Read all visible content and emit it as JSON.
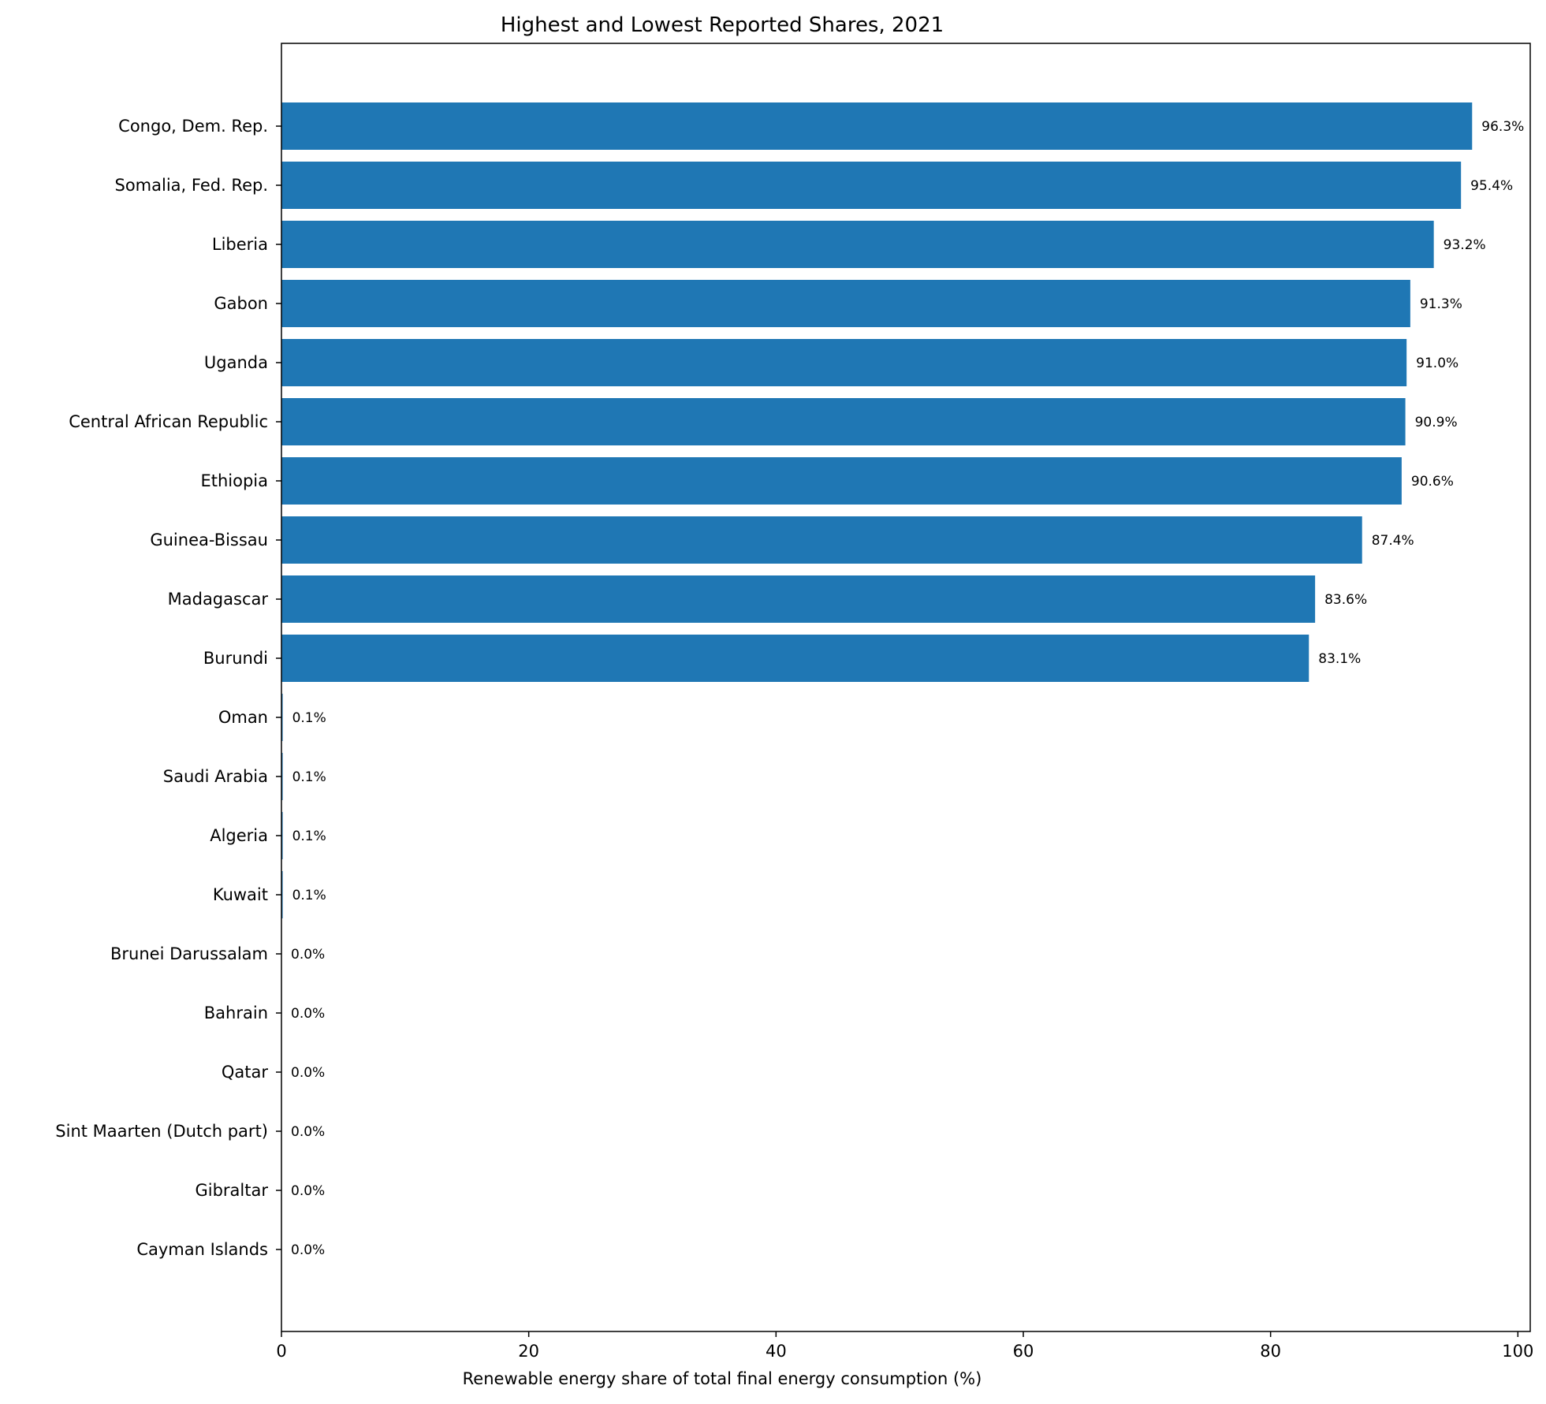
{
  "chart_data": {
    "type": "bar",
    "orientation": "horizontal",
    "title": "Highest and Lowest Reported Shares, 2021",
    "xlabel": "Renewable energy share of total final energy consumption (%)",
    "ylabel": "",
    "xlim": [
      0,
      101
    ],
    "xticks": [
      0,
      20,
      40,
      60,
      80,
      100
    ],
    "grid": false,
    "bar_color": "#1f77b4",
    "categories": [
      "Congo, Dem. Rep.",
      "Somalia, Fed. Rep.",
      "Liberia",
      "Gabon",
      "Uganda",
      "Central African Republic",
      "Ethiopia",
      "Guinea-Bissau",
      "Madagascar",
      "Burundi",
      "Oman",
      "Saudi Arabia",
      "Algeria",
      "Kuwait",
      "Brunei Darussalam",
      "Bahrain",
      "Qatar",
      "Sint Maarten (Dutch part)",
      "Gibraltar",
      "Cayman Islands"
    ],
    "values": [
      96.3,
      95.4,
      93.2,
      91.3,
      91.0,
      90.9,
      90.6,
      87.4,
      83.6,
      83.1,
      0.1,
      0.1,
      0.1,
      0.1,
      0.0,
      0.0,
      0.0,
      0.0,
      0.0,
      0.0
    ],
    "data_labels": [
      "96.3%",
      "95.4%",
      "93.2%",
      "91.3%",
      "91.0%",
      "90.9%",
      "90.6%",
      "87.4%",
      "83.6%",
      "83.1%",
      "0.1%",
      "0.1%",
      "0.1%",
      "0.1%",
      "0.0%",
      "0.0%",
      "0.0%",
      "0.0%",
      "0.0%",
      "0.0%"
    ]
  }
}
